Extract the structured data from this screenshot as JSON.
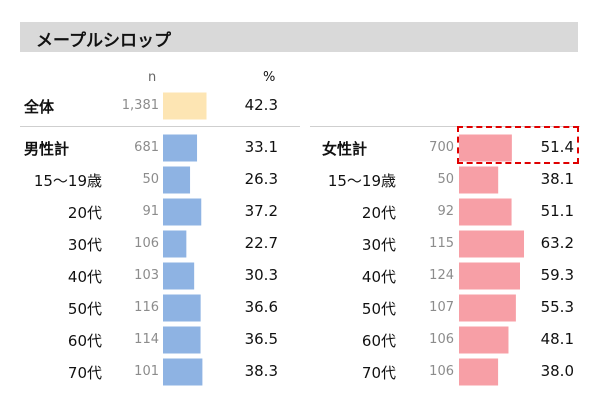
{
  "title": "メープルシロップ",
  "headers": {
    "n": "n",
    "pct": "%"
  },
  "colors": {
    "total": "#fde5b3",
    "male": "#8eb3e3",
    "female": "#f79fa6",
    "highlight": "#e00000"
  },
  "chart_data": {
    "type": "bar",
    "title": "メープルシロップ",
    "max_value": 70,
    "total": {
      "label": "全体",
      "n": "1,381",
      "value": 42.3,
      "value_text": "42.3"
    },
    "male": [
      {
        "label": "男性計",
        "n": "681",
        "value": 33.1,
        "value_text": "33.1",
        "bold": true
      },
      {
        "label": "15～19歳",
        "n": "50",
        "value": 26.3,
        "value_text": "26.3"
      },
      {
        "label": "20代",
        "n": "91",
        "value": 37.2,
        "value_text": "37.2"
      },
      {
        "label": "30代",
        "n": "106",
        "value": 22.7,
        "value_text": "22.7"
      },
      {
        "label": "40代",
        "n": "103",
        "value": 30.3,
        "value_text": "30.3"
      },
      {
        "label": "50代",
        "n": "116",
        "value": 36.6,
        "value_text": "36.6"
      },
      {
        "label": "60代",
        "n": "114",
        "value": 36.5,
        "value_text": "36.5"
      },
      {
        "label": "70代",
        "n": "101",
        "value": 38.3,
        "value_text": "38.3"
      }
    ],
    "female": [
      {
        "label": "女性計",
        "n": "700",
        "value": 51.4,
        "value_text": "51.4",
        "bold": true
      },
      {
        "label": "15～19歳",
        "n": "50",
        "value": 38.1,
        "value_text": "38.1"
      },
      {
        "label": "20代",
        "n": "92",
        "value": 51.1,
        "value_text": "51.1"
      },
      {
        "label": "30代",
        "n": "115",
        "value": 63.2,
        "value_text": "63.2"
      },
      {
        "label": "40代",
        "n": "124",
        "value": 59.3,
        "value_text": "59.3"
      },
      {
        "label": "50代",
        "n": "107",
        "value": 55.3,
        "value_text": "55.3"
      },
      {
        "label": "60代",
        "n": "106",
        "value": 48.1,
        "value_text": "48.1"
      },
      {
        "label": "70代",
        "n": "106",
        "value": 38.0,
        "value_text": "38.0"
      }
    ]
  }
}
